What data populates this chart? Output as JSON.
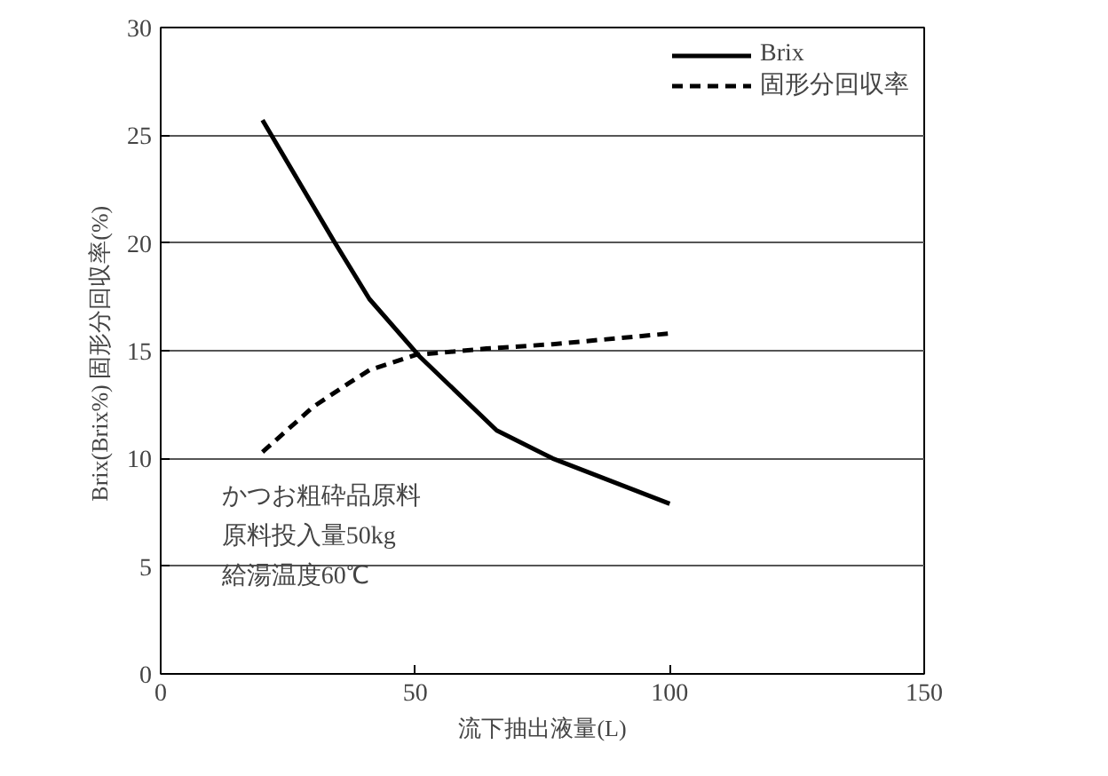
{
  "chart_data": {
    "type": "line",
    "xlabel": "流下抽出液量(L)",
    "ylabel": "Brix(Brix%)  固形分回収率(%)",
    "series": [
      {
        "name": "Brix",
        "color": "#000000",
        "line_style": "solid",
        "x": [
          20,
          34,
          41,
          51,
          66,
          77,
          100
        ],
        "values": [
          25.7,
          20.1,
          17.4,
          14.7,
          11.3,
          10.0,
          7.9
        ]
      },
      {
        "name": "固形分回収率",
        "color": "#000000",
        "line_style": "dashed",
        "x": [
          20,
          30,
          37,
          41,
          50,
          64,
          77,
          100
        ],
        "values": [
          10.3,
          12.4,
          13.5,
          14.1,
          14.8,
          15.1,
          15.3,
          15.8
        ]
      }
    ],
    "xlim": [
      0,
      150
    ],
    "ylim": [
      0,
      30
    ],
    "xticks": [
      0,
      50,
      100,
      150
    ],
    "yticks": [
      0,
      5,
      10,
      15,
      20,
      25,
      30
    ],
    "grid": "y",
    "legend": "top right",
    "marker": "none",
    "annotations": [
      "かつお粗砕品原料",
      "原料投入量50kg",
      "給湯温度60℃"
    ]
  }
}
